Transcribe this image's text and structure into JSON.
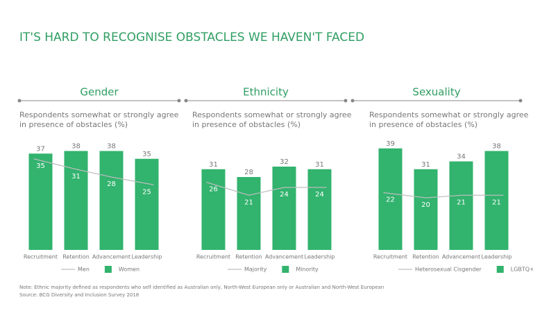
{
  "title": "IT'S HARD TO RECOGNISE OBSTACLES WE HAVEN'T FACED",
  "note": "Note: Ethnic majority defined as respondents who self identified as Australian only, North-West European only or Australian and North-West European",
  "source": "Source: BCG Diversity and Inclusion Survey 2018",
  "chart_data": [
    {
      "type": "bar",
      "title": "Gender",
      "subtitle": [
        "Respondents somewhat or strongly agree",
        "in presence of obstacles (%)"
      ],
      "categories": [
        "Recruitment",
        "Retention",
        "Advancement",
        "Leadership"
      ],
      "series": [
        {
          "name": "Men",
          "type": "line",
          "color": "#bdbdbd",
          "values": [
            35,
            31,
            28,
            25
          ]
        },
        {
          "name": "Women",
          "type": "bar",
          "color": "#32b36e",
          "values": [
            37,
            38,
            38,
            35
          ]
        }
      ]
    },
    {
      "type": "bar",
      "title": "Ethnicity",
      "subtitle": [
        "Respondents somewhat or strongly agree",
        "in presence of obstacles (%)"
      ],
      "categories": [
        "Recruitment",
        "Retention",
        "Advancement",
        "Leadership"
      ],
      "series": [
        {
          "name": "Majority",
          "type": "line",
          "color": "#bdbdbd",
          "values": [
            26,
            21,
            24,
            24
          ]
        },
        {
          "name": "Minority",
          "type": "bar",
          "color": "#32b36e",
          "values": [
            31,
            28,
            32,
            31
          ]
        }
      ]
    },
    {
      "type": "bar",
      "title": "Sexuality",
      "subtitle": [
        "Respondents somewhat or strongly agree",
        "in presence of obstacles (%)"
      ],
      "categories": [
        "Recruitment",
        "Retention",
        "Advancement",
        "Leadership"
      ],
      "series": [
        {
          "name": "Heterosexual Cisgender",
          "type": "line",
          "color": "#bdbdbd",
          "values": [
            22,
            20,
            21,
            21
          ]
        },
        {
          "name": "LGBTQ+",
          "type": "bar",
          "color": "#32b36e",
          "values": [
            39,
            31,
            34,
            38
          ]
        }
      ]
    }
  ]
}
